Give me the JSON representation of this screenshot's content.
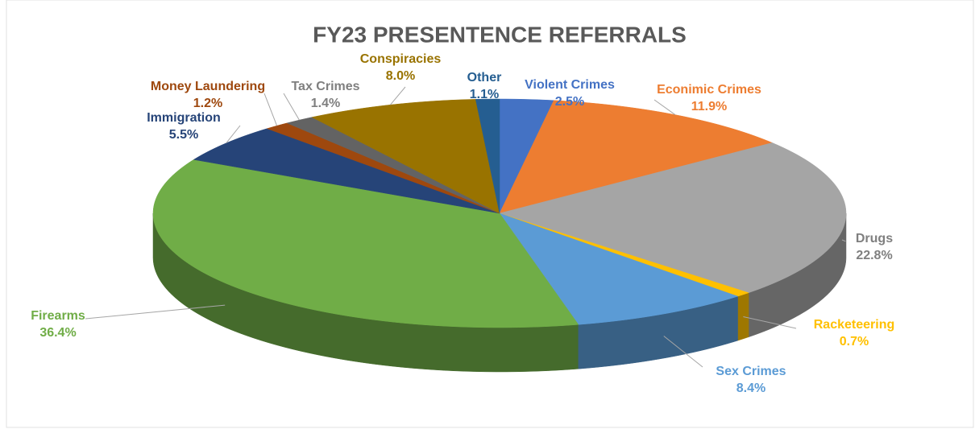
{
  "chart_data": {
    "type": "pie",
    "title": "FY23 PRESENTENCE REFERRALS",
    "categories": [
      "Violent Crimes",
      "Econimic Crimes",
      "Drugs",
      "Racketeering",
      "Sex Crimes",
      "Firearms",
      "Immigration",
      "Money Laundering",
      "Tax Crimes",
      "Conspiracies",
      "Other"
    ],
    "values": [
      2.5,
      11.9,
      22.8,
      0.7,
      8.4,
      36.4,
      5.5,
      1.2,
      1.4,
      8.0,
      1.1
    ],
    "value_labels": [
      "2.5%",
      "11.9%",
      "22.8%",
      "0.7%",
      "8.4%",
      "36.4%",
      "5.5%",
      "1.2%",
      "1.4%",
      "8.0%",
      "1.1%"
    ],
    "colors": [
      "#4472c4",
      "#ed7d31",
      "#a5a5a5",
      "#ffc000",
      "#5b9bd5",
      "#70ad47",
      "#264478",
      "#9e480e",
      "#636363",
      "#997300",
      "#255e91"
    ]
  }
}
